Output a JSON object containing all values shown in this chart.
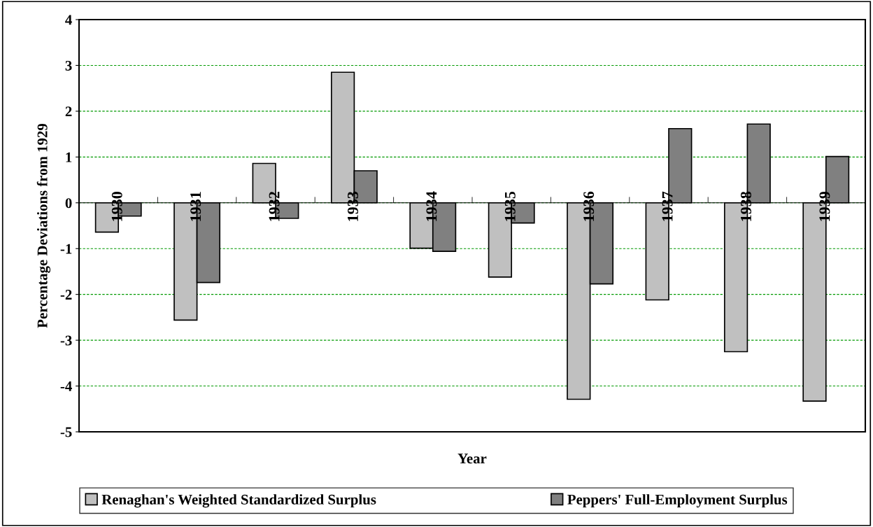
{
  "chart_data": {
    "type": "bar",
    "xlabel": "Year",
    "ylabel": "Percentage Deviations from 1929",
    "categories": [
      "1930",
      "1931",
      "1932",
      "1933",
      "1934",
      "1935",
      "1936",
      "1937",
      "1938",
      "1939"
    ],
    "series": [
      {
        "name": "Renaghan's Weighted Standardized Surplus",
        "color": "#c0c0c0",
        "values": [
          -0.64,
          -2.56,
          0.86,
          2.85,
          -0.99,
          -1.62,
          -4.29,
          -2.12,
          -3.25,
          -4.33
        ]
      },
      {
        "name": "Peppers' Full-Employment Surplus",
        "color": "#808080",
        "values": [
          -0.29,
          -1.74,
          -0.34,
          0.7,
          -1.06,
          -0.44,
          -1.77,
          1.62,
          1.72,
          1.01
        ]
      }
    ],
    "ylim": [
      -5,
      4
    ],
    "yticks": [
      -5,
      -4,
      -3,
      -2,
      -1,
      0,
      1,
      2,
      3,
      4
    ],
    "grid": "y",
    "legend": "bottom"
  }
}
